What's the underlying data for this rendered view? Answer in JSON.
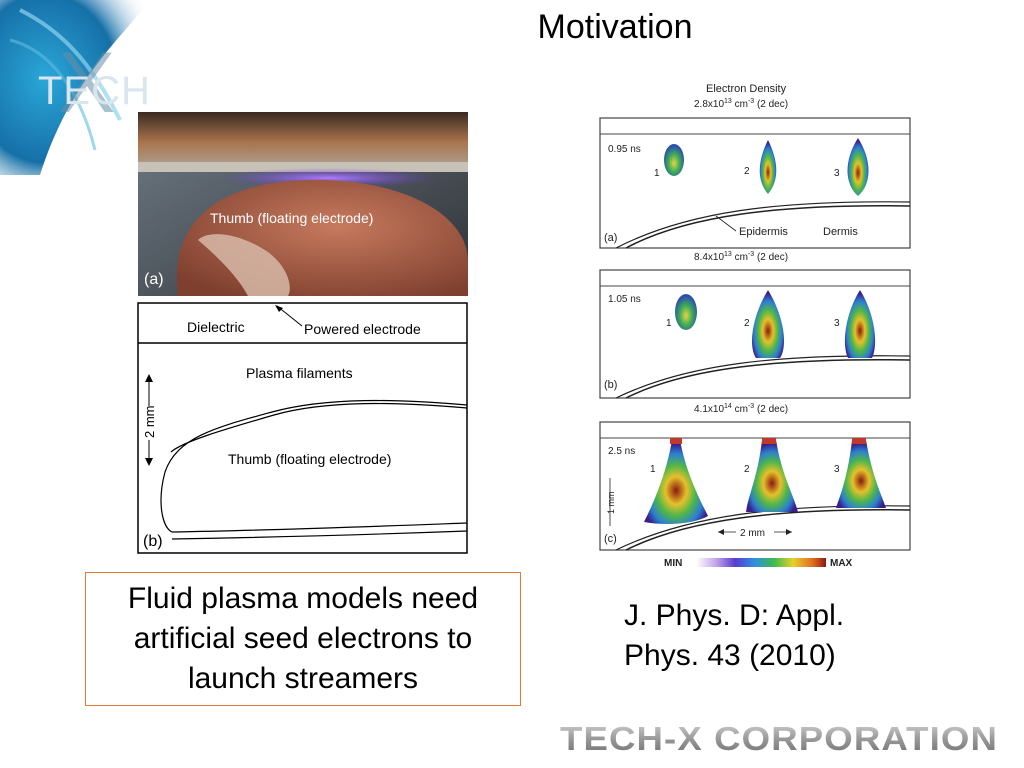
{
  "slide": {
    "title": "Motivation",
    "logo_text": "TECH",
    "logo_mark": "X",
    "callout": "Fluid plasma models need artificial seed electrons to launch streamers",
    "citation_line1": "J. Phys. D: Appl.",
    "citation_line2": "Phys. 43 (2010)",
    "footer_brand": "TECH-X CORPORATION"
  },
  "photo": {
    "label": "Thumb (floating electrode)",
    "panel": "(a)"
  },
  "diagram": {
    "dielectric": "Dielectric",
    "powered": "Powered electrode",
    "filaments": "Plasma filaments",
    "thumb": "Thumb (floating electrode)",
    "scale": "2 mm",
    "panel": "(b)"
  },
  "simulation": {
    "header_line1": "Electron Density",
    "header_line2": "2.8x10",
    "header_exp": "13",
    "header_units": " cm",
    "header_units_exp": "-3",
    "header_dec": " (2 dec)",
    "panel_a": {
      "time": "0.95 ns",
      "label": "(a)",
      "epidermis": "Epidermis",
      "dermis": "Dermis"
    },
    "range_b": {
      "base": "8.4x10",
      "exp": "13",
      "units": " cm",
      "units_exp": "-3",
      "dec": " (2 dec)"
    },
    "panel_b": {
      "time": "1.05 ns",
      "label": "(b)"
    },
    "range_c": {
      "base": "4.1x10",
      "exp": "14",
      "units": " cm",
      "units_exp": "-3",
      "dec": " (2 dec)"
    },
    "panel_c": {
      "time": "2.5 ns",
      "label": "(c)",
      "vscale": "1 mm",
      "hscale": "2 mm"
    },
    "streamer_labels": [
      "1",
      "2",
      "3"
    ],
    "colorbar_min": "MIN",
    "colorbar_max": "MAX"
  }
}
